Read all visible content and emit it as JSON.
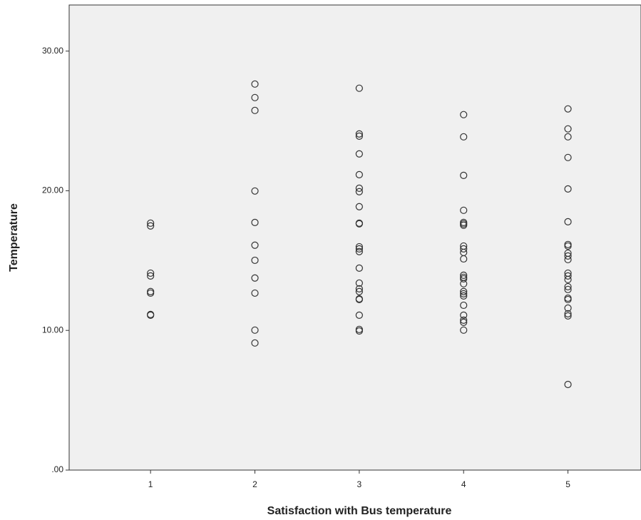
{
  "chart_data": {
    "type": "scatter",
    "x_label": "Satisfaction with Bus temperature",
    "y_label": "Temperature",
    "xlim": [
      0.22,
      5.7
    ],
    "ylim": [
      0,
      33.3
    ],
    "xticks": [
      1,
      2,
      3,
      4,
      5
    ],
    "yticks": [
      {
        "value": 0,
        "label": ".00"
      },
      {
        "value": 10,
        "label": "10.00"
      },
      {
        "value": 20,
        "label": "20.00"
      },
      {
        "value": 30,
        "label": "30.00"
      }
    ],
    "background": "#f0f0f0",
    "color": "#333333",
    "series": [
      {
        "x": [
          1,
          1,
          1,
          1,
          1,
          1,
          1,
          1,
          2,
          2,
          2,
          2,
          2,
          2,
          2,
          2,
          2,
          2,
          2,
          3,
          3,
          3,
          3,
          3,
          3,
          3,
          3,
          3,
          3,
          3,
          3,
          3,
          3,
          3,
          3,
          3,
          3,
          3,
          3,
          3,
          3,
          4,
          4,
          4,
          4,
          4,
          4,
          4,
          4,
          4,
          4,
          4,
          4,
          4,
          4,
          4,
          4,
          4,
          4,
          4,
          4,
          4,
          4,
          4,
          5,
          5,
          5,
          5,
          5,
          5,
          5,
          5,
          5,
          5,
          5,
          5,
          5,
          5,
          5,
          5,
          5,
          5,
          5,
          5,
          5,
          5
        ],
        "y": [
          17.68,
          17.48,
          14.1,
          13.9,
          12.78,
          12.67,
          11.14,
          11.09,
          27.64,
          26.67,
          25.75,
          19.98,
          17.73,
          16.1,
          15.02,
          13.75,
          12.67,
          10.02,
          9.1,
          27.34,
          24.07,
          23.91,
          22.64,
          21.15,
          20.18,
          19.93,
          18.86,
          17.68,
          17.63,
          15.99,
          15.84,
          15.64,
          14.46,
          13.39,
          12.98,
          12.78,
          12.26,
          12.21,
          11.09,
          10.07,
          9.96,
          25.45,
          23.86,
          21.1,
          18.6,
          17.73,
          17.63,
          17.53,
          16.04,
          15.84,
          15.58,
          15.12,
          13.95,
          13.8,
          13.69,
          13.34,
          12.78,
          12.62,
          12.47,
          11.8,
          11.09,
          10.73,
          10.58,
          10.02,
          25.86,
          24.43,
          23.86,
          22.38,
          20.13,
          17.78,
          16.15,
          16.04,
          15.53,
          15.33,
          15.07,
          14.1,
          13.9,
          13.64,
          13.13,
          12.93,
          12.31,
          12.21,
          11.6,
          11.19,
          11.04,
          6.13
        ]
      }
    ]
  }
}
